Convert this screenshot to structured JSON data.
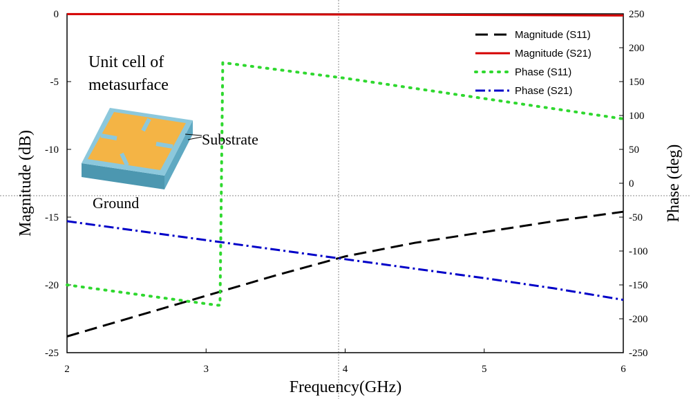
{
  "chart_data": {
    "type": "line",
    "xlabel": "Frequency(GHz)",
    "ylabel_left": "Magnitude (dB)",
    "ylabel_right": "Phase (deg)",
    "xlim": [
      2,
      6
    ],
    "ylim_left": [
      -25,
      0
    ],
    "ylim_right": [
      -250,
      250
    ],
    "xticks": [
      "2",
      "3",
      "4",
      "5",
      "6"
    ],
    "yticks_left": [
      "0",
      "-5",
      "-10",
      "-15",
      "-20",
      "-25"
    ],
    "yticks_right": [
      "250",
      "200",
      "150",
      "100",
      "50",
      "0",
      "-50",
      "-100",
      "-150",
      "-200",
      "-250"
    ],
    "legend_position": "top-right",
    "series": [
      {
        "name": "Magnitude (S11)",
        "axis": "left",
        "color": "#000000",
        "style": "dash",
        "x": [
          2.0,
          2.5,
          3.0,
          3.5,
          4.0,
          4.5,
          5.0,
          5.5,
          6.0
        ],
        "y": [
          -23.8,
          -22.3,
          -20.8,
          -19.3,
          -17.9,
          -16.9,
          -16.1,
          -15.3,
          -14.6
        ]
      },
      {
        "name": "Magnitude (S21)",
        "axis": "left",
        "color": "#d40000",
        "style": "solid",
        "x": [
          2.0,
          3.0,
          4.0,
          5.0,
          6.0
        ],
        "y": [
          -0.02,
          -0.03,
          -0.05,
          -0.08,
          -0.12
        ]
      },
      {
        "name": "Phase (S11)",
        "axis": "right",
        "color": "#2fd82f",
        "style": "dot",
        "x": [
          2.0,
          3.08,
          3.1,
          3.12,
          4.0,
          5.0,
          6.0
        ],
        "y": [
          -150,
          -180,
          -180,
          178,
          155,
          125,
          95
        ]
      },
      {
        "name": "Phase (S21)",
        "axis": "right",
        "color": "#0000c8",
        "style": "dashdot",
        "x": [
          2.0,
          2.5,
          3.0,
          3.5,
          4.0,
          4.5,
          5.0,
          5.5,
          6.0
        ],
        "y": [
          -56,
          -70,
          -84,
          -98,
          -112,
          -126,
          -140,
          -155,
          -172
        ]
      }
    ],
    "annotations": {
      "inset_title_line1": "Unit cell of",
      "inset_title_line2": "metasurface",
      "substrate_label": "Substrate",
      "ground_label": "Ground"
    },
    "inset_colors": {
      "patch": "#f4b445",
      "substrate_top": "#8cc8dc",
      "substrate_side": "#5fa9c2",
      "substrate_front": "#4c97b0"
    }
  }
}
